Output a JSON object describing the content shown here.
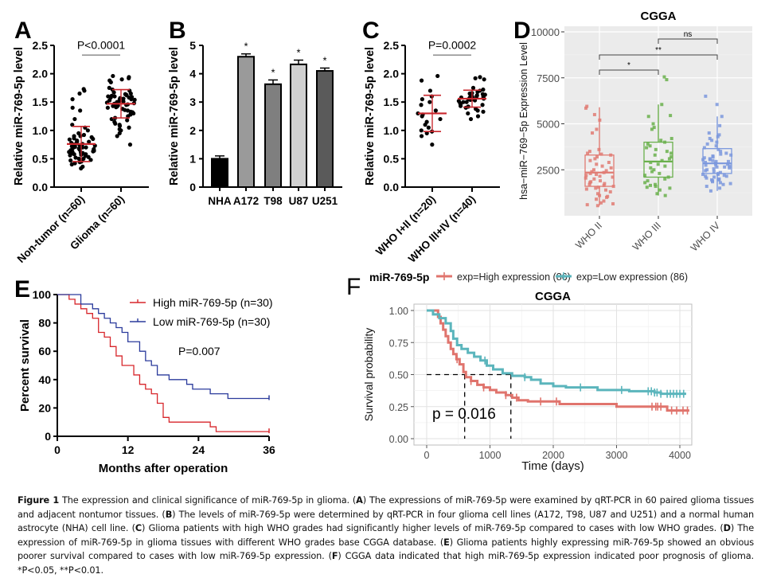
{
  "figure": {
    "caption": {
      "label": "Figure 1",
      "parts": [
        {
          "text": " The expression and clinical significance of miR-769-5p in glioma. (",
          "bold": false
        },
        {
          "text": "A",
          "bold": true
        },
        {
          "text": ") The expressions of miR-769-5p were examined by qRT-PCR in 60 paired glioma tissues and adjacent nontumor tissues. (",
          "bold": false
        },
        {
          "text": "B",
          "bold": true
        },
        {
          "text": ") The levels of miR-769-5p were determined by qRT-PCR in four glioma cell lines (A172, T98, U87 and U251) and a normal human astrocyte (NHA) cell line. (",
          "bold": false
        },
        {
          "text": "C",
          "bold": true
        },
        {
          "text": ") Glioma patients with high WHO grades had significantly higher levels of miR-769-5p compared to cases with low WHO grades. (",
          "bold": false
        },
        {
          "text": "D",
          "bold": true
        },
        {
          "text": ") The expression of miR-769-5p in glioma tissues with different WHO grades base CGGA database. (",
          "bold": false
        },
        {
          "text": "E",
          "bold": true
        },
        {
          "text": ") Glioma patients highly expressing miR-769-5p showed an obvious poorer survival compared to cases with low miR-769-5p expression. (",
          "bold": false
        },
        {
          "text": "F",
          "bold": true
        },
        {
          "text": ") CGGA data indicated that high miR-769-5p expression indicated poor prognosis of glioma. *P<0.05, **P<0.01.",
          "bold": false
        }
      ]
    }
  },
  "chart_data": [
    {
      "panel": "A",
      "type": "scatter",
      "title": "",
      "ylabel": "Relative miR-769-5p level",
      "xlabel": "",
      "ylim": [
        0,
        2.5
      ],
      "yticks": [
        "0.0",
        "0.5",
        "1.0",
        "1.5",
        "2.0",
        "2.5"
      ],
      "categories": [
        "Non-tumor (n=60)",
        "Glioma (n=60)"
      ],
      "annotation": "P<0.0001",
      "series": [
        {
          "name": "Non-tumor (n=60)",
          "mean": 0.76,
          "sd": 0.31,
          "values": [
            0.33,
            0.36,
            0.4,
            0.42,
            0.44,
            0.45,
            0.47,
            0.48,
            0.5,
            0.5,
            0.52,
            0.53,
            0.55,
            0.56,
            0.57,
            0.58,
            0.58,
            0.6,
            0.6,
            0.61,
            0.62,
            0.62,
            0.63,
            0.64,
            0.65,
            0.66,
            0.67,
            0.68,
            0.68,
            0.7,
            0.7,
            0.71,
            0.72,
            0.73,
            0.74,
            0.75,
            0.76,
            0.77,
            0.78,
            0.8,
            0.8,
            0.82,
            0.84,
            0.85,
            0.86,
            0.88,
            0.9,
            0.9,
            0.92,
            0.95,
            1.0,
            1.05,
            1.1,
            1.2,
            1.35,
            1.4,
            1.55,
            1.65,
            1.7,
            1.73
          ]
        },
        {
          "name": "Glioma (n=60)",
          "mean": 1.47,
          "sd": 0.25,
          "values": [
            0.75,
            0.9,
            0.95,
            1.0,
            1.02,
            1.05,
            1.08,
            1.1,
            1.12,
            1.15,
            1.18,
            1.2,
            1.22,
            1.25,
            1.28,
            1.3,
            1.32,
            1.33,
            1.35,
            1.36,
            1.38,
            1.4,
            1.41,
            1.42,
            1.43,
            1.44,
            1.45,
            1.46,
            1.47,
            1.48,
            1.49,
            1.5,
            1.51,
            1.52,
            1.53,
            1.54,
            1.55,
            1.55,
            1.56,
            1.57,
            1.58,
            1.58,
            1.59,
            1.6,
            1.6,
            1.61,
            1.62,
            1.63,
            1.64,
            1.65,
            1.67,
            1.7,
            1.72,
            1.75,
            1.85,
            1.88,
            1.9,
            1.92,
            1.94,
            1.96
          ]
        }
      ]
    },
    {
      "panel": "B",
      "type": "bar",
      "ylabel": "Relative miR-769-5p level",
      "ylim": [
        0,
        5
      ],
      "yticks": [
        "0",
        "1",
        "2",
        "3",
        "4",
        "5"
      ],
      "categories": [
        "NHA",
        "A172",
        "T98",
        "U87",
        "U251"
      ],
      "values": [
        1.0,
        4.6,
        3.63,
        4.33,
        4.1
      ],
      "errors": [
        0.1,
        0.1,
        0.15,
        0.15,
        0.1
      ],
      "significance": [
        "",
        "*",
        "*",
        "*",
        "*"
      ],
      "colors": [
        "#000000",
        "#9a9a9a",
        "#7f7f7f",
        "#d0d0d0",
        "#5a5a5a"
      ]
    },
    {
      "panel": "C",
      "type": "scatter",
      "ylabel": "Relative miR-769-5p level",
      "ylim": [
        0,
        2.5
      ],
      "yticks": [
        "0.0",
        "0.5",
        "1.0",
        "1.5",
        "2.0",
        "2.5"
      ],
      "categories": [
        "WHO I+II (n=20)",
        "WHO III+IV (n=40)"
      ],
      "annotation": "P=0.0002",
      "series": [
        {
          "name": "WHO I+II (n=20)",
          "mean": 1.3,
          "sd": 0.32,
          "values": [
            0.75,
            0.9,
            0.95,
            0.98,
            1.0,
            1.05,
            1.1,
            1.15,
            1.2,
            1.25,
            1.28,
            1.3,
            1.35,
            1.45,
            1.5,
            1.55,
            1.6,
            1.7,
            1.88,
            1.96
          ]
        },
        {
          "name": "WHO III+IV (n=40)",
          "mean": 1.56,
          "sd": 0.15,
          "values": [
            1.2,
            1.25,
            1.3,
            1.33,
            1.35,
            1.38,
            1.4,
            1.42,
            1.43,
            1.45,
            1.46,
            1.48,
            1.5,
            1.5,
            1.52,
            1.53,
            1.54,
            1.55,
            1.55,
            1.56,
            1.57,
            1.58,
            1.58,
            1.59,
            1.6,
            1.6,
            1.61,
            1.62,
            1.62,
            1.63,
            1.64,
            1.65,
            1.66,
            1.68,
            1.7,
            1.72,
            1.75,
            1.9,
            1.92,
            1.94
          ]
        }
      ]
    },
    {
      "panel": "D",
      "type": "box",
      "title": "CGGA",
      "ylabel": "hsa−miR−769−5p Expression Level",
      "ylim": [
        0,
        10000
      ],
      "yticks": [
        "2500",
        "5000",
        "7500",
        "10000"
      ],
      "categories": [
        "WHO II",
        "WHO III",
        "WHO IV"
      ],
      "colors": [
        "#e07b73",
        "#6ab04c",
        "#7b98dd"
      ],
      "boxes": [
        {
          "q1": 1600,
          "median": 2350,
          "q3": 3300,
          "whisker_low": 550,
          "whisker_high": 5900
        },
        {
          "q1": 2100,
          "median": 2950,
          "q3": 4000,
          "whisker_low": 1100,
          "whisker_high": 6050
        },
        {
          "q1": 2300,
          "median": 2850,
          "q3": 3650,
          "whisker_low": 1350,
          "whisker_high": 5400
        }
      ],
      "points": [
        [
          550,
          600,
          650,
          700,
          800,
          900,
          1000,
          1050,
          1100,
          1200,
          1300,
          1400,
          1450,
          1500,
          1550,
          1600,
          1650,
          1700,
          1750,
          1800,
          1850,
          1900,
          2000,
          2050,
          2100,
          2150,
          2200,
          2250,
          2300,
          2350,
          2400,
          2450,
          2500,
          2600,
          2700,
          2800,
          2900,
          3000,
          3100,
          3200,
          3300,
          3350,
          3400,
          3500,
          3600,
          4500,
          4700,
          5200,
          5500,
          5850,
          5950
        ],
        [
          1100,
          1200,
          1400,
          1500,
          1550,
          1600,
          1650,
          1700,
          1800,
          1900,
          2000,
          2100,
          2200,
          2300,
          2400,
          2500,
          2600,
          2700,
          2800,
          2900,
          3000,
          3100,
          3200,
          3300,
          3400,
          3500,
          3600,
          3700,
          3800,
          3900,
          4000,
          4100,
          4200,
          4700,
          4800,
          5000,
          5400,
          5450,
          6050,
          7400,
          7550
        ],
        [
          1350,
          1500,
          1600,
          1700,
          1750,
          1800,
          1850,
          1900,
          1950,
          2000,
          2050,
          2100,
          2150,
          2200,
          2250,
          2300,
          2350,
          2400,
          2450,
          2500,
          2550,
          2600,
          2650,
          2700,
          2750,
          2800,
          2850,
          2900,
          2950,
          3000,
          3050,
          3100,
          3150,
          3200,
          3250,
          3300,
          3400,
          3500,
          3600,
          3700,
          3800,
          3900,
          4000,
          4100,
          4200,
          4300,
          4400,
          4500,
          4900,
          5400,
          6050,
          6500,
          2250,
          2650,
          2950,
          3050,
          3350,
          2750,
          2150,
          1950
        ]
      ],
      "comparisons": [
        {
          "groups": [
            "WHO II",
            "WHO III"
          ],
          "label": "*"
        },
        {
          "groups": [
            "WHO II",
            "WHO IV"
          ],
          "label": "**"
        },
        {
          "groups": [
            "WHO III",
            "WHO IV"
          ],
          "label": "ns"
        }
      ]
    },
    {
      "panel": "E",
      "type": "line",
      "xlabel": "Months after operation",
      "ylabel": "Percent survival",
      "xlim": [
        0,
        36
      ],
      "ylim": [
        0,
        100
      ],
      "xticks": [
        "0",
        "12",
        "24",
        "36"
      ],
      "yticks": [
        "0",
        "20",
        "40",
        "60",
        "80",
        "100"
      ],
      "annotation": "P=0.007",
      "series": [
        {
          "name": "High miR-769-5p (n=30)",
          "color": "#d7262b",
          "steps": [
            [
              0,
              100
            ],
            [
              2,
              96.7
            ],
            [
              3,
              93.3
            ],
            [
              4,
              90
            ],
            [
              5,
              86.7
            ],
            [
              6,
              83.3
            ],
            [
              7,
              73.3
            ],
            [
              8,
              70
            ],
            [
              9,
              63.3
            ],
            [
              10,
              56.7
            ],
            [
              11,
              50
            ],
            [
              13,
              43.3
            ],
            [
              14,
              36.7
            ],
            [
              15,
              33.3
            ],
            [
              16,
              30
            ],
            [
              17,
              23.3
            ],
            [
              18,
              13.3
            ],
            [
              19,
              10
            ],
            [
              26,
              6.7
            ],
            [
              27,
              3.3
            ],
            [
              36,
              3.3
            ]
          ]
        },
        {
          "name": "Low miR-769-5p (n=30)",
          "color": "#2b3b9c",
          "steps": [
            [
              0,
              100
            ],
            [
              4,
              93.3
            ],
            [
              6,
              90
            ],
            [
              7,
              86.7
            ],
            [
              8,
              83.3
            ],
            [
              9,
              80
            ],
            [
              10,
              76.7
            ],
            [
              11,
              73.3
            ],
            [
              12,
              66.7
            ],
            [
              14,
              60
            ],
            [
              15,
              53.3
            ],
            [
              16,
              50
            ],
            [
              17,
              43.3
            ],
            [
              19,
              40
            ],
            [
              22,
              36.7
            ],
            [
              23,
              33.3
            ],
            [
              26,
              30
            ],
            [
              29,
              26.7
            ],
            [
              36,
              26.7
            ]
          ]
        }
      ]
    },
    {
      "panel": "F",
      "type": "line",
      "title": "CGGA",
      "legend_title": "miR-769-5p",
      "legend_position": "top",
      "xlabel": "Time (days)",
      "ylabel": "Survival probability",
      "xlim": [
        0,
        4200
      ],
      "ylim": [
        0,
        1
      ],
      "xticks": [
        "0",
        "1000",
        "2000",
        "3000",
        "4000"
      ],
      "yticks": [
        "0.00",
        "0.25",
        "0.50",
        "0.75",
        "1.00"
      ],
      "annotation": "p = 0.016",
      "median_survival": [
        600,
        1330
      ],
      "series": [
        {
          "name": "exp=High expression (86)",
          "color": "#e0746d",
          "steps": [
            [
              0,
              1.0
            ],
            [
              130,
              1.0
            ],
            [
              180,
              0.95
            ],
            [
              220,
              0.9
            ],
            [
              260,
              0.85
            ],
            [
              300,
              0.8
            ],
            [
              340,
              0.75
            ],
            [
              380,
              0.7
            ],
            [
              420,
              0.66
            ],
            [
              470,
              0.62
            ],
            [
              520,
              0.58
            ],
            [
              580,
              0.52
            ],
            [
              620,
              0.48
            ],
            [
              700,
              0.45
            ],
            [
              800,
              0.42
            ],
            [
              900,
              0.4
            ],
            [
              1000,
              0.38
            ],
            [
              1100,
              0.36
            ],
            [
              1250,
              0.34
            ],
            [
              1350,
              0.32
            ],
            [
              1450,
              0.3
            ],
            [
              1600,
              0.29
            ],
            [
              2100,
              0.27
            ],
            [
              3000,
              0.25
            ],
            [
              3800,
              0.22
            ],
            [
              4150,
              0.22
            ]
          ]
        },
        {
          "name": "exp=Low expression (86)",
          "color": "#5bb5bc",
          "steps": [
            [
              0,
              1.0
            ],
            [
              100,
              0.97
            ],
            [
              200,
              0.94
            ],
            [
              300,
              0.9
            ],
            [
              380,
              0.84
            ],
            [
              420,
              0.78
            ],
            [
              480,
              0.73
            ],
            [
              550,
              0.7
            ],
            [
              650,
              0.67
            ],
            [
              750,
              0.64
            ],
            [
              850,
              0.61
            ],
            [
              950,
              0.57
            ],
            [
              1050,
              0.54
            ],
            [
              1200,
              0.51
            ],
            [
              1350,
              0.49
            ],
            [
              1550,
              0.48
            ],
            [
              1650,
              0.46
            ],
            [
              1800,
              0.43
            ],
            [
              2000,
              0.41
            ],
            [
              2200,
              0.4
            ],
            [
              2700,
              0.38
            ],
            [
              3200,
              0.37
            ],
            [
              3600,
              0.36
            ],
            [
              3700,
              0.35
            ],
            [
              4100,
              0.35
            ]
          ]
        }
      ]
    }
  ],
  "labels": {
    "A": "A",
    "B": "B",
    "C": "C",
    "D": "D",
    "E": "E",
    "F": "F"
  }
}
